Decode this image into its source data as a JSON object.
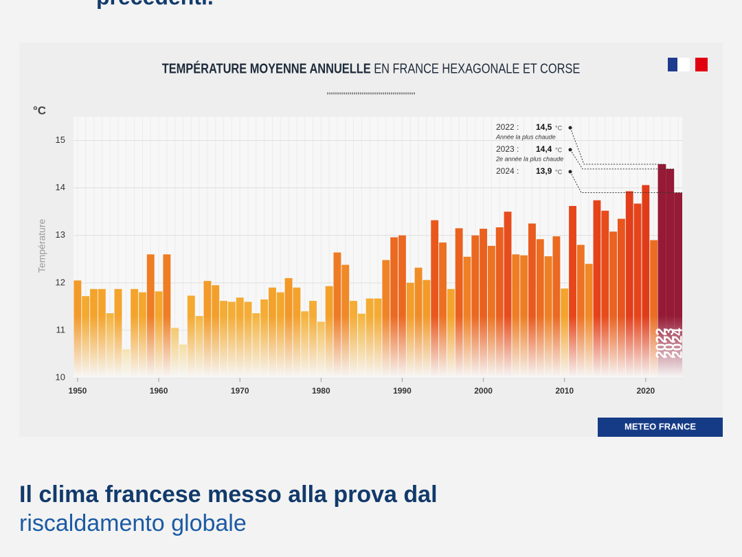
{
  "lead_text": "precedenti.",
  "headline": [
    "Il clima francese messo alla prova dal",
    "riscaldamento globale"
  ],
  "chart_data": {
    "type": "bar",
    "title": "TEMPÉRATURE MOYENNE ANNUELLE",
    "subtitle": "EN FRANCE HEXAGONALE ET CORSE",
    "y_unit": "°C",
    "y_label": "Température",
    "source": "METEO FRANCE",
    "x": [
      1950,
      1951,
      1952,
      1953,
      1954,
      1955,
      1956,
      1957,
      1958,
      1959,
      1960,
      1961,
      1962,
      1963,
      1964,
      1965,
      1966,
      1967,
      1968,
      1969,
      1970,
      1971,
      1972,
      1973,
      1974,
      1975,
      1976,
      1977,
      1978,
      1979,
      1980,
      1981,
      1982,
      1983,
      1984,
      1985,
      1986,
      1987,
      1988,
      1989,
      1990,
      1991,
      1992,
      1993,
      1994,
      1995,
      1996,
      1997,
      1998,
      1999,
      2000,
      2001,
      2002,
      2003,
      2004,
      2005,
      2006,
      2007,
      2008,
      2009,
      2010,
      2011,
      2012,
      2013,
      2014,
      2015,
      2016,
      2017,
      2018,
      2019,
      2020,
      2021,
      2022,
      2023,
      2024
    ],
    "values": [
      12.05,
      11.72,
      11.87,
      11.87,
      11.36,
      11.87,
      10.6,
      11.87,
      11.8,
      12.6,
      11.82,
      12.6,
      11.05,
      10.7,
      11.73,
      11.3,
      12.04,
      11.95,
      11.62,
      11.6,
      11.69,
      11.6,
      11.36,
      11.65,
      11.9,
      11.8,
      12.1,
      11.9,
      11.4,
      11.62,
      11.18,
      11.93,
      12.64,
      12.38,
      11.62,
      11.35,
      11.67,
      11.67,
      12.48,
      12.96,
      13.0,
      12.0,
      12.32,
      12.06,
      13.32,
      12.85,
      11.87,
      13.15,
      12.55,
      13.0,
      13.14,
      12.78,
      13.17,
      13.5,
      12.6,
      12.58,
      13.25,
      12.92,
      12.56,
      12.98,
      11.88,
      13.62,
      12.8,
      12.4,
      13.74,
      13.52,
      13.08,
      13.35,
      13.93,
      13.67,
      14.06,
      12.9,
      14.5,
      14.4,
      13.9
    ],
    "colorscale": [
      "#f3dd78",
      "#f4a62c",
      "#e6441a",
      "#c91d14"
    ],
    "highlight_color": "#951a35",
    "xlim": [
      1949.5,
      2024.5
    ],
    "xticks": [
      1950,
      1960,
      1970,
      1980,
      1990,
      2000,
      2010,
      2020
    ],
    "ylim": [
      10,
      15.5
    ],
    "yticks": [
      10,
      11,
      12,
      13,
      14,
      15
    ],
    "grid": true,
    "annotations": [
      {
        "year": "2022 :",
        "value": "14,5",
        "unit": "°C",
        "note": "Année la plus chaude"
      },
      {
        "year": "2023 :",
        "value": "14,4",
        "unit": "°C",
        "note": "2e année la plus chaude"
      },
      {
        "year": "2024 :",
        "value": "13,9",
        "unit": "°C"
      }
    ]
  }
}
